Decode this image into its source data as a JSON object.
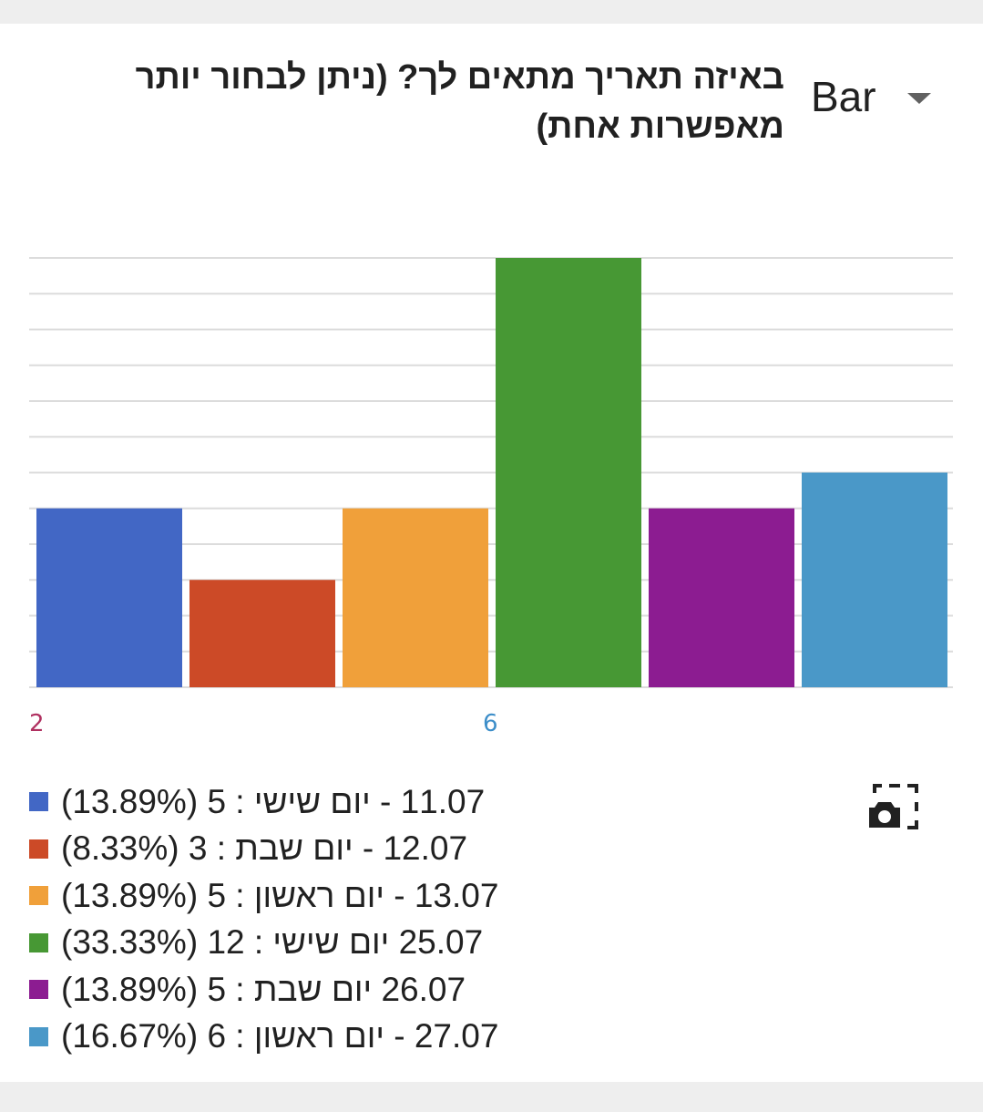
{
  "header": {
    "title": "באיזה תאריך מתאים לך? (ניתן לבחור יותר מאפשרות אחת)",
    "chart_type_label": "Bar"
  },
  "axis": {
    "tick_left": "2",
    "tick_mid": "6"
  },
  "colors": {
    "gridline": "#dcdcdc",
    "tick_left": "#b03060",
    "tick_mid": "#3d8ec9"
  },
  "legend": [
    {
      "text": "11.07 - יום שישי : 5 (13.89%)",
      "color": "#4267c5"
    },
    {
      "text": "12.07 - יום שבת : 3 (8.33%)",
      "color": "#cc4a27"
    },
    {
      "text": "13.07 - יום ראשון : 5 (13.89%)",
      "color": "#f0a03a"
    },
    {
      "text": "25.07 יום שישי : 12 (33.33%)",
      "color": "#479834"
    },
    {
      "text": "26.07 יום שבת : 5 (13.89%)",
      "color": "#8c1c91"
    },
    {
      "text": "27.07 - יום ראשון : 6 (16.67%)",
      "color": "#4a98c8"
    }
  ],
  "chart_data": {
    "type": "bar",
    "categories": [
      "11.07 - יום שישי",
      "12.07 - יום שבת",
      "13.07 - יום ראשון",
      "25.07 יום שישי",
      "26.07 יום שבת",
      "27.07 - יום ראשון"
    ],
    "values": [
      5,
      3,
      5,
      12,
      5,
      6
    ],
    "percentages": [
      "13.89%",
      "8.33%",
      "13.89%",
      "33.33%",
      "13.89%",
      "16.67%"
    ],
    "colors": [
      "#4267c5",
      "#cc4a27",
      "#f0a03a",
      "#479834",
      "#8c1c91",
      "#4a98c8"
    ],
    "ylim": [
      0,
      12
    ],
    "grid": true
  }
}
